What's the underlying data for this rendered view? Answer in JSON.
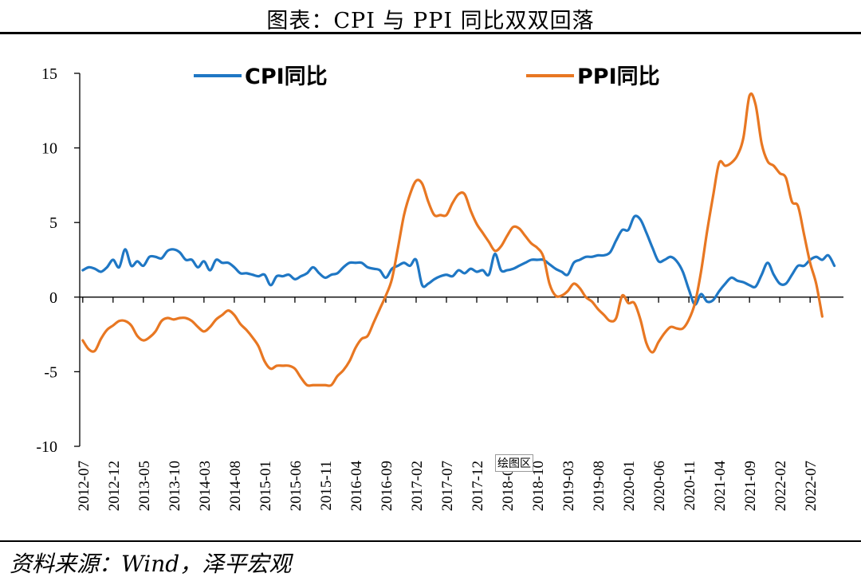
{
  "title": "图表：CPI 与 PPI 同比双双回落",
  "source": "资料来源：Wind，泽平宏观",
  "plot_area_tag": "绘图区",
  "chart_data": {
    "type": "line",
    "ylim": [
      -10,
      15
    ],
    "yticks": [
      15,
      10,
      5,
      0,
      -5,
      -10
    ],
    "xlim": [
      "2012-07",
      "2022-12"
    ],
    "xticks": [
      "2012-07",
      "2012-12",
      "2013-05",
      "2013-10",
      "2014-03",
      "2014-08",
      "2015-01",
      "2015-06",
      "2015-11",
      "2016-04",
      "2016-09",
      "2017-02",
      "2017-07",
      "2017-12",
      "2018-05",
      "2018-10",
      "2019-03",
      "2019-08",
      "2020-01",
      "2020-06",
      "2020-11",
      "2021-04",
      "2021-09",
      "2022-02",
      "2022-07"
    ],
    "legend_position": "top",
    "grid": false,
    "series": [
      {
        "name": "CPI同比",
        "color": "#1f77c4",
        "values": [
          1.8,
          2.0,
          1.9,
          1.7,
          2.0,
          2.5,
          2.0,
          3.2,
          2.1,
          2.4,
          2.1,
          2.7,
          2.7,
          2.6,
          3.1,
          3.2,
          3.0,
          2.5,
          2.5,
          2.0,
          2.4,
          1.8,
          2.5,
          2.3,
          2.3,
          2.0,
          1.6,
          1.6,
          1.5,
          1.4,
          1.5,
          0.8,
          1.4,
          1.4,
          1.5,
          1.2,
          1.4,
          1.6,
          2.0,
          1.6,
          1.3,
          1.5,
          1.6,
          2.0,
          2.3,
          2.3,
          2.3,
          2.0,
          1.9,
          1.8,
          1.3,
          1.9,
          2.1,
          2.3,
          2.1,
          2.5,
          0.8,
          0.9,
          1.2,
          1.4,
          1.5,
          1.4,
          1.8,
          1.6,
          1.9,
          1.7,
          1.8,
          1.5,
          2.9,
          1.8,
          1.8,
          1.9,
          2.1,
          2.3,
          2.5,
          2.5,
          2.5,
          2.2,
          1.9,
          1.7,
          1.5,
          2.3,
          2.5,
          2.7,
          2.7,
          2.8,
          2.8,
          3.0,
          3.8,
          4.5,
          4.5,
          5.4,
          5.2,
          4.3,
          3.3,
          2.4,
          2.5,
          2.7,
          2.4,
          1.7,
          0.5,
          -0.5,
          0.2,
          -0.3,
          -0.2,
          0.4,
          0.9,
          1.3,
          1.1,
          1.0,
          0.8,
          0.7,
          1.5,
          2.3,
          1.5,
          0.9,
          0.9,
          1.5,
          2.1,
          2.1,
          2.5,
          2.7,
          2.5,
          2.8,
          2.1
        ]
      },
      {
        "name": "PPI同比",
        "color": "#e87722",
        "values": [
          -2.9,
          -3.5,
          -3.6,
          -2.8,
          -2.2,
          -1.9,
          -1.6,
          -1.6,
          -1.9,
          -2.6,
          -2.9,
          -2.7,
          -2.3,
          -1.6,
          -1.4,
          -1.5,
          -1.4,
          -1.4,
          -1.6,
          -2.0,
          -2.3,
          -2.0,
          -1.5,
          -1.2,
          -0.9,
          -1.2,
          -1.8,
          -2.2,
          -2.7,
          -3.3,
          -4.3,
          -4.8,
          -4.6,
          -4.6,
          -4.6,
          -4.8,
          -5.4,
          -5.9,
          -5.9,
          -5.9,
          -5.9,
          -5.9,
          -5.3,
          -4.9,
          -4.3,
          -3.4,
          -2.8,
          -2.6,
          -1.7,
          -0.8,
          0.1,
          1.2,
          3.3,
          5.5,
          6.9,
          7.8,
          7.6,
          6.4,
          5.5,
          5.5,
          5.5,
          6.3,
          6.9,
          6.9,
          5.8,
          4.9,
          4.3,
          3.7,
          3.1,
          3.4,
          4.1,
          4.7,
          4.6,
          4.1,
          3.6,
          3.3,
          2.7,
          0.9,
          0.1,
          0.1,
          0.4,
          0.9,
          0.6,
          0.0,
          -0.3,
          -0.8,
          -1.2,
          -1.6,
          -1.4,
          0.1,
          -0.4,
          -0.4,
          -1.5,
          -3.1,
          -3.7,
          -3.0,
          -2.4,
          -2.0,
          -2.1,
          -2.1,
          -1.5,
          -0.4,
          1.7,
          4.4,
          6.8,
          9.0,
          8.8,
          9.0,
          9.5,
          10.7,
          13.5,
          12.9,
          10.3,
          9.1,
          8.8,
          8.3,
          8.0,
          6.4,
          6.1,
          4.2,
          2.3,
          0.9,
          -1.3
        ]
      }
    ]
  }
}
